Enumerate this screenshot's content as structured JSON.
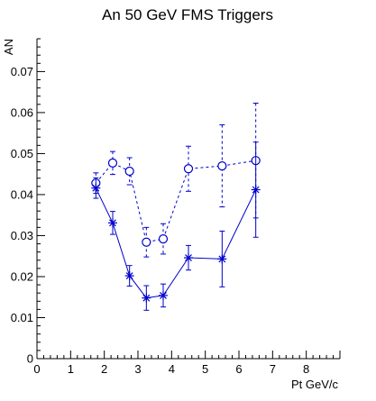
{
  "chart_data": {
    "type": "scatter",
    "title": "An 50 GeV FMS Triggers",
    "xlabel": "Pt GeV/c",
    "ylabel": "AN",
    "xlim": [
      0,
      9
    ],
    "ylim": [
      0,
      0.078
    ],
    "x_ticks": [
      0,
      1,
      2,
      3,
      4,
      5,
      6,
      7,
      8
    ],
    "y_ticks": [
      0,
      0.01,
      0.02,
      0.03,
      0.04,
      0.05,
      0.06,
      0.07
    ],
    "y_tick_labels": [
      "0",
      "0.01",
      "0.02",
      "0.03",
      "0.04",
      "0.05",
      "0.06",
      "0.07"
    ],
    "grid": false,
    "series": [
      {
        "marker": "open-circle",
        "line": "dashed",
        "color": "#0000cc",
        "x": [
          1.75,
          2.25,
          2.75,
          3.25,
          3.75,
          4.5,
          5.5,
          6.5
        ],
        "y": [
          0.0428,
          0.0477,
          0.0457,
          0.0284,
          0.0292,
          0.0463,
          0.047,
          0.0483
        ],
        "yerr": [
          0.0025,
          0.0028,
          0.0033,
          0.0036,
          0.0037,
          0.0055,
          0.01,
          0.014
        ]
      },
      {
        "marker": "star",
        "line": "solid",
        "color": "#0000cc",
        "x": [
          1.75,
          2.25,
          2.75,
          3.25,
          3.75,
          4.5,
          5.5,
          6.5
        ],
        "y": [
          0.0416,
          0.0331,
          0.0202,
          0.0148,
          0.0154,
          0.0246,
          0.0243,
          0.0412
        ],
        "yerr": [
          0.0025,
          0.0028,
          0.0025,
          0.003,
          0.0028,
          0.003,
          0.0068,
          0.0116
        ]
      }
    ]
  }
}
